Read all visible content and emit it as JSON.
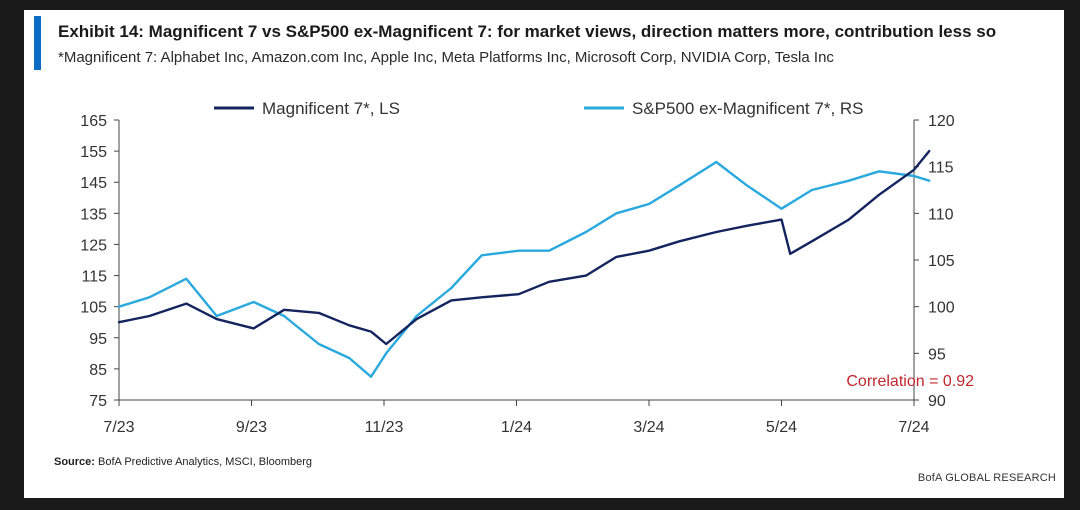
{
  "header": {
    "title": "Exhibit 14: Magnificent 7 vs S&P500 ex-Magnificent 7: for market views, direction matters more, contribution less so",
    "subtitle": "*Magnificent 7: Alphabet Inc, Amazon.com Inc, Apple Inc, Meta Platforms Inc, Microsoft Corp, NVIDIA Corp, Tesla Inc"
  },
  "footer": {
    "source_label": "Source:",
    "source_text": " BofA Predictive Analytics, MSCI, Bloomberg",
    "brand": "BofA GLOBAL RESEARCH"
  },
  "colors": {
    "mag7": "#14245e",
    "spx_ex": "#2aa9de",
    "accent": "#0b6cc4",
    "correlation": "#c0262d"
  },
  "chart_data": {
    "type": "line",
    "title": "",
    "xlabel": "",
    "ylabel": "",
    "x_ticks": [
      "7/23",
      "9/23",
      "11/23",
      "1/24",
      "3/24",
      "5/24",
      "7/24"
    ],
    "x_range": [
      "2023-07",
      "2024-07"
    ],
    "y_left_ticks": [
      75,
      85,
      95,
      105,
      115,
      125,
      135,
      145,
      155,
      165
    ],
    "y_left_range": [
      75,
      165
    ],
    "y_right_ticks": [
      90,
      95,
      100,
      105,
      110,
      115,
      120
    ],
    "y_right_range": [
      90,
      120
    ],
    "grid": false,
    "legend_position": "top",
    "annotation": "Correlation = 0.92",
    "series": [
      {
        "name": "Magnificent 7*, LS",
        "axis": "left",
        "points": [
          [
            "2023-07-01",
            100
          ],
          [
            "2023-07-15",
            102
          ],
          [
            "2023-08-01",
            106
          ],
          [
            "2023-08-15",
            101
          ],
          [
            "2023-09-01",
            98
          ],
          [
            "2023-09-15",
            104
          ],
          [
            "2023-10-01",
            103
          ],
          [
            "2023-10-15",
            99
          ],
          [
            "2023-10-25",
            97
          ],
          [
            "2023-11-01",
            93
          ],
          [
            "2023-11-15",
            101
          ],
          [
            "2023-12-01",
            107
          ],
          [
            "2023-12-15",
            108
          ],
          [
            "2024-01-01",
            109
          ],
          [
            "2024-01-15",
            113
          ],
          [
            "2024-02-01",
            115
          ],
          [
            "2024-02-15",
            121
          ],
          [
            "2024-03-01",
            123
          ],
          [
            "2024-03-15",
            126
          ],
          [
            "2024-04-01",
            129
          ],
          [
            "2024-04-15",
            131
          ],
          [
            "2024-05-01",
            133
          ],
          [
            "2024-05-05",
            122
          ],
          [
            "2024-05-15",
            126
          ],
          [
            "2024-06-01",
            133
          ],
          [
            "2024-06-15",
            141
          ],
          [
            "2024-07-01",
            149
          ],
          [
            "2024-07-08",
            155
          ]
        ]
      },
      {
        "name": "S&P500 ex-Magnificent 7*, RS",
        "axis": "right",
        "points": [
          [
            "2023-07-01",
            100
          ],
          [
            "2023-07-15",
            101
          ],
          [
            "2023-08-01",
            103
          ],
          [
            "2023-08-15",
            99
          ],
          [
            "2023-09-01",
            100.5
          ],
          [
            "2023-09-15",
            99
          ],
          [
            "2023-10-01",
            96
          ],
          [
            "2023-10-15",
            94.5
          ],
          [
            "2023-10-25",
            92.5
          ],
          [
            "2023-11-01",
            95
          ],
          [
            "2023-11-15",
            99
          ],
          [
            "2023-12-01",
            102
          ],
          [
            "2023-12-15",
            105.5
          ],
          [
            "2024-01-01",
            106
          ],
          [
            "2024-01-15",
            106
          ],
          [
            "2024-02-01",
            108
          ],
          [
            "2024-02-15",
            110
          ],
          [
            "2024-03-01",
            111
          ],
          [
            "2024-03-15",
            113
          ],
          [
            "2024-04-01",
            115.5
          ],
          [
            "2024-04-15",
            113
          ],
          [
            "2024-05-01",
            110.5
          ],
          [
            "2024-05-15",
            112.5
          ],
          [
            "2024-06-01",
            113.5
          ],
          [
            "2024-06-15",
            114.5
          ],
          [
            "2024-07-01",
            114
          ],
          [
            "2024-07-08",
            113.5
          ]
        ]
      }
    ]
  }
}
